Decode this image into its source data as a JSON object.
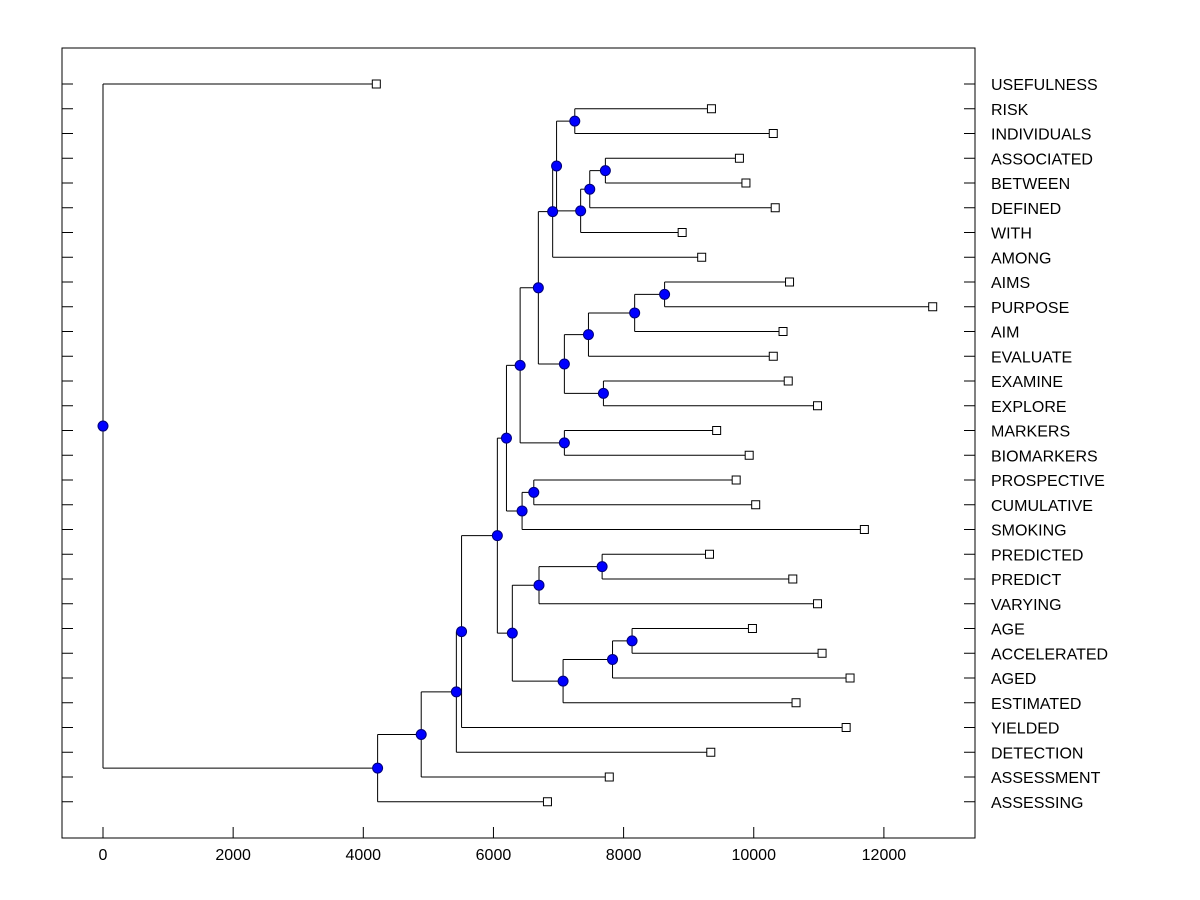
{
  "chart_data": {
    "type": "dendrogram",
    "title": "",
    "xlabel": "",
    "ylabel": "",
    "x_ticks": [
      0,
      2000,
      4000,
      6000,
      8000,
      10000,
      12000
    ],
    "xlim": [
      -630,
      13400
    ],
    "leaves": [
      {
        "label": "USEFULNESS",
        "value": 4200
      },
      {
        "label": "RISK",
        "value": 9350
      },
      {
        "label": "INDIVIDUALS",
        "value": 10300
      },
      {
        "label": "ASSOCIATED",
        "value": 9780
      },
      {
        "label": "BETWEEN",
        "value": 9880
      },
      {
        "label": "DEFINED",
        "value": 10330
      },
      {
        "label": "WITH",
        "value": 8900
      },
      {
        "label": "AMONG",
        "value": 9200
      },
      {
        "label": "AIMS",
        "value": 10550
      },
      {
        "label": "PURPOSE",
        "value": 12750
      },
      {
        "label": "AIM",
        "value": 10450
      },
      {
        "label": "EVALUATE",
        "value": 10300
      },
      {
        "label": "EXAMINE",
        "value": 10530
      },
      {
        "label": "EXPLORE",
        "value": 10980
      },
      {
        "label": "MARKERS",
        "value": 9430
      },
      {
        "label": "BIOMARKERS",
        "value": 9930
      },
      {
        "label": "PROSPECTIVE",
        "value": 9730
      },
      {
        "label": "CUMULATIVE",
        "value": 10030
      },
      {
        "label": "SMOKING",
        "value": 11700
      },
      {
        "label": "PREDICTED",
        "value": 9320
      },
      {
        "label": "PREDICT",
        "value": 10600
      },
      {
        "label": "VARYING",
        "value": 10980
      },
      {
        "label": "AGE",
        "value": 9980
      },
      {
        "label": "ACCELERATED",
        "value": 11050
      },
      {
        "label": "AGED",
        "value": 11480
      },
      {
        "label": "ESTIMATED",
        "value": 10650
      },
      {
        "label": "YIELDED",
        "value": 11420
      },
      {
        "label": "DETECTION",
        "value": 9340
      },
      {
        "label": "ASSESSMENT",
        "value": 7780
      },
      {
        "label": "ASSESSING",
        "value": 6830
      }
    ],
    "merges": [
      {
        "id": "n_risk_ind",
        "value": 7250,
        "children": [
          "RISK",
          "INDIVIDUALS"
        ]
      },
      {
        "id": "n_assoc_betw",
        "value": 7720,
        "children": [
          "ASSOCIATED",
          "BETWEEN"
        ]
      },
      {
        "id": "n_ab_def",
        "value": 7480,
        "children": [
          "n_assoc_betw",
          "DEFINED"
        ]
      },
      {
        "id": "n_abd_with",
        "value": 7340,
        "children": [
          "n_ab_def",
          "WITH"
        ]
      },
      {
        "id": "n_ri_abdw",
        "value": 6970,
        "children": [
          "n_risk_ind",
          "n_abd_with"
        ]
      },
      {
        "id": "n_top_among",
        "value": 6910,
        "children": [
          "n_ri_abdw",
          "AMONG"
        ]
      },
      {
        "id": "n_aims_purp",
        "value": 8630,
        "children": [
          "AIMS",
          "PURPOSE"
        ]
      },
      {
        "id": "n_ap_aim",
        "value": 8170,
        "children": [
          "n_aims_purp",
          "AIM"
        ]
      },
      {
        "id": "n_apa_eval",
        "value": 7460,
        "children": [
          "n_ap_aim",
          "EVALUATE"
        ]
      },
      {
        "id": "n_exam_expl",
        "value": 7690,
        "children": [
          "EXAMINE",
          "EXPLORE"
        ]
      },
      {
        "id": "n_aim_group",
        "value": 7090,
        "children": [
          "n_apa_eval",
          "n_exam_expl"
        ]
      },
      {
        "id": "n_upper",
        "value": 6690,
        "children": [
          "n_top_among",
          "n_aim_group"
        ]
      },
      {
        "id": "n_markers",
        "value": 7090,
        "children": [
          "MARKERS",
          "BIOMARKERS"
        ]
      },
      {
        "id": "n_upper_markers",
        "value": 6410,
        "children": [
          "n_upper",
          "n_markers"
        ]
      },
      {
        "id": "n_prosp_cum",
        "value": 6620,
        "children": [
          "PROSPECTIVE",
          "CUMULATIVE"
        ]
      },
      {
        "id": "n_pc_smoking",
        "value": 6440,
        "children": [
          "n_prosp_cum",
          "SMOKING"
        ]
      },
      {
        "id": "n_upper_smoking",
        "value": 6200,
        "children": [
          "n_upper_markers",
          "n_pc_smoking"
        ]
      },
      {
        "id": "n_predicted_predict",
        "value": 7670,
        "children": [
          "PREDICTED",
          "PREDICT"
        ]
      },
      {
        "id": "n_pp_varying",
        "value": 6700,
        "children": [
          "n_predicted_predict",
          "VARYING"
        ]
      },
      {
        "id": "n_age_acc",
        "value": 8130,
        "children": [
          "AGE",
          "ACCELERATED"
        ]
      },
      {
        "id": "n_aa_aged",
        "value": 7830,
        "children": [
          "n_age_acc",
          "AGED"
        ]
      },
      {
        "id": "n_aaa_est",
        "value": 7070,
        "children": [
          "n_aa_aged",
          "ESTIMATED"
        ]
      },
      {
        "id": "n_pred_age",
        "value": 6290,
        "children": [
          "n_pp_varying",
          "n_aaa_est"
        ]
      },
      {
        "id": "n_big",
        "value": 6060,
        "children": [
          "n_upper_smoking",
          "n_pred_age"
        ]
      },
      {
        "id": "n_big_yielded",
        "value": 5510,
        "children": [
          "n_big",
          "YIELDED"
        ]
      },
      {
        "id": "n_by_detection",
        "value": 5430,
        "children": [
          "n_big_yielded",
          "DETECTION"
        ]
      },
      {
        "id": "n_bd_assessment",
        "value": 4890,
        "children": [
          "n_by_detection",
          "ASSESSMENT"
        ]
      },
      {
        "id": "n_ba_assessing",
        "value": 4220,
        "children": [
          "n_bd_assessment",
          "ASSESSING"
        ]
      },
      {
        "id": "n_root",
        "value": 0,
        "children": [
          "USEFULNESS",
          "n_ba_assessing"
        ]
      }
    ]
  }
}
